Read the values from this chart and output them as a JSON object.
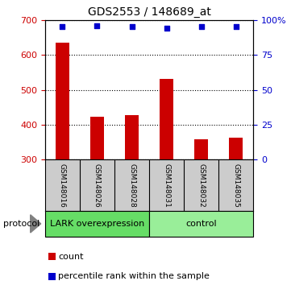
{
  "title": "GDS2553 / 148689_at",
  "samples": [
    "GSM148016",
    "GSM148026",
    "GSM148028",
    "GSM148031",
    "GSM148032",
    "GSM148035"
  ],
  "counts": [
    635,
    422,
    428,
    532,
    358,
    363
  ],
  "percentile_ranks": [
    95,
    96,
    95,
    94,
    95,
    95
  ],
  "baseline": 300,
  "ylim_left": [
    300,
    700
  ],
  "ylim_right": [
    0,
    100
  ],
  "yticks_left": [
    300,
    400,
    500,
    600,
    700
  ],
  "yticks_right": [
    0,
    25,
    50,
    75,
    100
  ],
  "bar_color": "#cc0000",
  "dot_color": "#0000cc",
  "group1_label": "LARK overexpression",
  "group2_label": "control",
  "group1_color": "#66dd66",
  "group2_color": "#99ee99",
  "protocol_label": "protocol",
  "legend_count_label": "count",
  "legend_pct_label": "percentile rank within the sample",
  "sample_box_color": "#cccccc",
  "bg_color": "#ffffff"
}
